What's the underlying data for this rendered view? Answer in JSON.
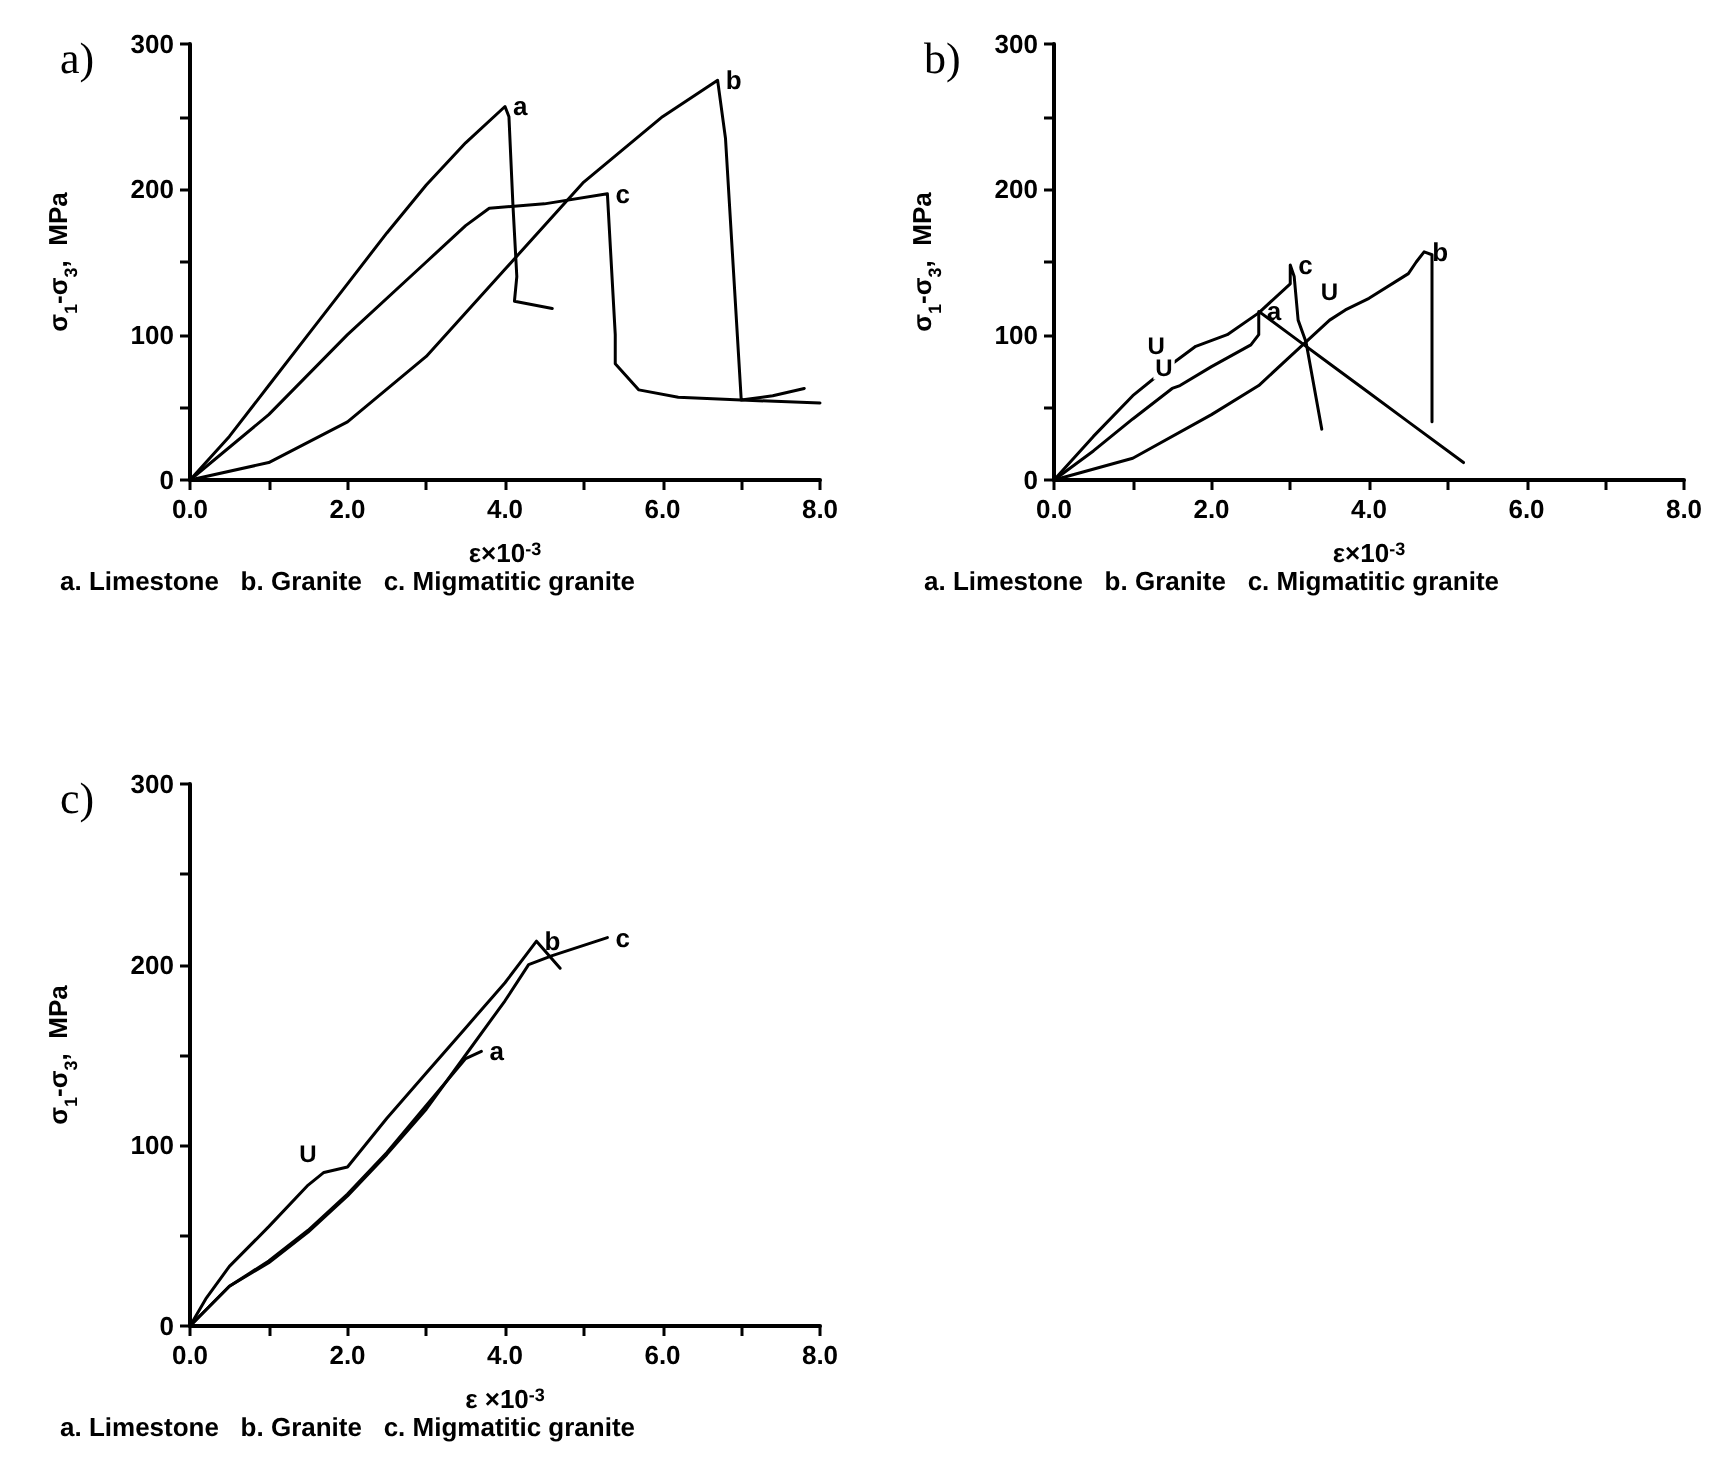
{
  "chart_data": [
    {
      "type": "line",
      "title": "a)",
      "xlabel": "ε×10$^{-3}$",
      "ylabel": "σ$_{1}$-σ$_{3}$,  MPa",
      "xlim": [
        0,
        8
      ],
      "ylim": [
        0,
        300
      ],
      "xticks": [
        {
          "value": 0,
          "label": "0.0"
        },
        {
          "value": 1,
          "label": null
        },
        {
          "value": 2,
          "label": "2.0"
        },
        {
          "value": 3,
          "label": null
        },
        {
          "value": 4,
          "label": "4.0"
        },
        {
          "value": 5,
          "label": null
        },
        {
          "value": 6,
          "label": "6.0"
        },
        {
          "value": 7,
          "label": null
        },
        {
          "value": 8,
          "label": "8.0"
        }
      ],
      "yticks": [
        0,
        {
          "value": 50,
          "label": null
        },
        100,
        {
          "value": 150,
          "label": null
        },
        200,
        {
          "value": 250,
          "label": null
        },
        300
      ],
      "grid": false,
      "legend": false,
      "marker": "none",
      "line_style": "solid",
      "series": [
        {
          "name": "a",
          "color": "#000000",
          "x": [
            0,
            0.5,
            1,
            1.5,
            2,
            2.5,
            3,
            3.5,
            4.0,
            4.05,
            4.1,
            4.15,
            4.12,
            4.6
          ],
          "values": [
            0,
            30,
            65,
            100,
            135,
            170,
            203,
            232,
            257,
            250,
            190,
            140,
            123,
            118
          ]
        },
        {
          "name": "b",
          "color": "#000000",
          "x": [
            0,
            1,
            2,
            3,
            4,
            5,
            6,
            6.7,
            6.8,
            7.0,
            7.4,
            7.8
          ],
          "values": [
            0,
            12,
            40,
            85,
            145,
            205,
            250,
            275,
            235,
            55,
            58,
            63
          ]
        },
        {
          "name": "c",
          "color": "#000000",
          "x": [
            0,
            1,
            2,
            3,
            3.5,
            3.8,
            4.5,
            5.3,
            5.4,
            5.4,
            5.7,
            6.2,
            7,
            8
          ],
          "values": [
            0,
            45,
            100,
            150,
            175,
            187,
            190,
            197,
            100,
            80,
            62,
            57,
            55,
            53
          ]
        }
      ],
      "annotations": [
        "a. Limestone   b. Granite   c. Migmatitic granite"
      ]
    },
    {
      "type": "line",
      "title": "b)",
      "xlabel": "ε×10$^{-3}$",
      "ylabel": "σ$_{1}$-σ$_{3}$,  MPa",
      "xlim": [
        0,
        8
      ],
      "ylim": [
        0,
        300
      ],
      "xticks": [
        {
          "value": 0,
          "label": "0.0"
        },
        {
          "value": 1,
          "label": null
        },
        {
          "value": 2,
          "label": "2.0"
        },
        {
          "value": 3,
          "label": null
        },
        {
          "value": 4,
          "label": "4.0"
        },
        {
          "value": 5,
          "label": null
        },
        {
          "value": 6,
          "label": "6.0"
        },
        {
          "value": 7,
          "label": null
        },
        {
          "value": 8,
          "label": "8.0"
        }
      ],
      "yticks": [
        0,
        {
          "value": 50,
          "label": null
        },
        100,
        {
          "value": 150,
          "label": null
        },
        200,
        {
          "value": 250,
          "label": null
        },
        300
      ],
      "grid": false,
      "legend": false,
      "marker": "none",
      "line_style": "solid",
      "series": [
        {
          "name": "a",
          "color": "#000000",
          "x": [
            0,
            0.5,
            1,
            1.5,
            1.6,
            2,
            2.5,
            2.6,
            2.6,
            3,
            3.5,
            4,
            4.5,
            5.2
          ],
          "values": [
            0,
            20,
            42,
            63,
            65,
            78,
            93,
            100,
            116,
            100,
            80,
            60,
            40,
            12
          ]
        },
        {
          "name": "b",
          "color": "#000000",
          "x": [
            0,
            1,
            2,
            2.6,
            3,
            3.5,
            3.7,
            4,
            4.5,
            4.6,
            4.7,
            4.8,
            4.8
          ],
          "values": [
            0,
            15,
            45,
            65,
            85,
            110,
            117,
            125,
            142,
            150,
            157,
            155,
            40
          ]
        },
        {
          "name": "c",
          "color": "#000000",
          "x": [
            0,
            0.5,
            1,
            1.5,
            1.8,
            2.2,
            2.6,
            3.0,
            3.0,
            3.05,
            3.1,
            3.2,
            3.4
          ],
          "values": [
            0,
            30,
            58,
            80,
            92,
            100,
            115,
            135,
            148,
            140,
            110,
            95,
            35
          ]
        }
      ],
      "annotations": [
        {
          "text": "U",
          "x": 1.5,
          "y": 80
        },
        {
          "text": "U",
          "x": 1.6,
          "y": 65
        },
        {
          "text": "U",
          "x": 3.7,
          "y": 117
        },
        "a. Limestone   b. Granite   c. Migmatitic granite"
      ]
    },
    {
      "type": "line",
      "title": "c)",
      "xlabel": "ε ×10$^{-3}$",
      "ylabel": "σ$_{1}$-σ$_{3}$,  MPa",
      "xlim": [
        0,
        8
      ],
      "ylim": [
        0,
        300
      ],
      "xticks": [
        {
          "value": 0,
          "label": "0.0"
        },
        {
          "value": 1,
          "label": null
        },
        {
          "value": 2,
          "label": "2.0"
        },
        {
          "value": 3,
          "label": null
        },
        {
          "value": 4,
          "label": "4.0"
        },
        {
          "value": 5,
          "label": null
        },
        {
          "value": 6,
          "label": "6.0"
        },
        {
          "value": 7,
          "label": null
        },
        {
          "value": 8,
          "label": "8.0"
        }
      ],
      "yticks": [
        0,
        {
          "value": 50,
          "label": null
        },
        100,
        {
          "value": 150,
          "label": null
        },
        200,
        {
          "value": 250,
          "label": null
        },
        300
      ],
      "grid": false,
      "legend": false,
      "marker": "none",
      "line_style": "solid",
      "series": [
        {
          "name": "a",
          "color": "#000000",
          "x": [
            0,
            0.5,
            1,
            1.5,
            2,
            2.5,
            3,
            3.5,
            3.7
          ],
          "values": [
            0,
            22,
            36,
            53,
            73,
            96,
            122,
            148,
            152
          ]
        },
        {
          "name": "b",
          "color": "#000000",
          "x": [
            0,
            0.2,
            0.5,
            1,
            1.5,
            1.7,
            2,
            2.5,
            3,
            3.5,
            4,
            4.4,
            4.7
          ],
          "values": [
            0,
            15,
            33,
            55,
            78,
            85,
            88,
            115,
            140,
            165,
            190,
            213,
            198
          ]
        },
        {
          "name": "c",
          "color": "#000000",
          "x": [
            0,
            0.5,
            1,
            1.5,
            2,
            2.5,
            3,
            3.5,
            4,
            4.3,
            4.6,
            5.3
          ],
          "values": [
            0,
            22,
            35,
            52,
            72,
            95,
            120,
            150,
            180,
            200,
            205,
            215
          ]
        }
      ],
      "annotations": [
        {
          "text": "U",
          "x": 1.7,
          "y": 85
        },
        "a. Limestone   b. Granite   c. Migmatitic granite"
      ]
    }
  ]
}
